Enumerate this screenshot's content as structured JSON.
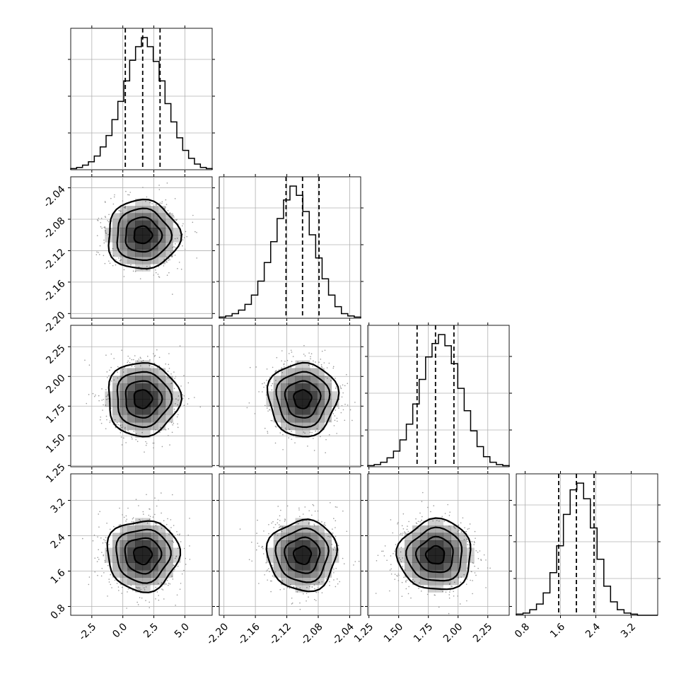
{
  "chart_data": {
    "type": "corner",
    "parameters": [
      {
        "range": [
          -4.2,
          7.2
        ],
        "ticks": [
          "-2.5",
          "0.0",
          "2.5",
          "5.0"
        ],
        "tick_values": [
          -2.5,
          0,
          2.5,
          5
        ],
        "mean": 1.6,
        "sd": 1.45,
        "quantiles": [
          0.2,
          1.6,
          3.0
        ]
      },
      {
        "range": [
          -2.206,
          -2.026
        ],
        "ticks": [
          "-2.20",
          "-2.16",
          "-2.12",
          "-2.08",
          "-2.04"
        ],
        "tick_values": [
          -2.2,
          -2.16,
          -2.12,
          -2.08,
          -2.04
        ],
        "mean": -2.1,
        "sd": 0.022,
        "quantiles": [
          -2.121,
          -2.1,
          -2.079
        ]
      },
      {
        "range": [
          1.24,
          2.43
        ],
        "ticks": [
          "1.25",
          "1.50",
          "1.75",
          "2.00",
          "2.25"
        ],
        "tick_values": [
          1.25,
          1.5,
          1.75,
          2.0,
          2.25
        ],
        "mean": 1.81,
        "sd": 0.155,
        "quantiles": [
          1.655,
          1.81,
          1.965
        ]
      },
      {
        "range": [
          0.6,
          3.8
        ],
        "ticks": [
          "0.8",
          "1.6",
          "2.4",
          "3.2"
        ],
        "tick_values": [
          0.8,
          1.6,
          2.4,
          3.2
        ],
        "mean": 1.96,
        "sd": 0.4,
        "quantiles": [
          1.56,
          1.96,
          2.36
        ]
      }
    ],
    "histograms": [
      {
        "param": 0,
        "edges_range": [
          -4.2,
          7.2
        ],
        "counts": [
          1,
          2,
          4,
          7,
          12,
          20,
          30,
          44,
          60,
          78,
          96,
          108,
          116,
          108,
          95,
          78,
          58,
          42,
          28,
          17,
          10,
          5,
          2,
          1
        ]
      },
      {
        "param": 1,
        "edges_range": [
          -2.206,
          -2.026
        ],
        "counts": [
          1,
          2,
          4,
          7,
          12,
          20,
          32,
          48,
          66,
          86,
          102,
          114,
          106,
          92,
          72,
          52,
          34,
          20,
          10,
          4,
          2,
          1
        ]
      },
      {
        "param": 2,
        "edges_range": [
          1.24,
          2.43
        ],
        "counts": [
          1,
          2,
          4,
          8,
          14,
          24,
          38,
          56,
          78,
          98,
          110,
          118,
          108,
          92,
          70,
          50,
          32,
          18,
          9,
          4,
          2,
          1
        ]
      },
      {
        "param": 3,
        "edges_range": [
          0.6,
          3.8
        ],
        "counts": [
          1,
          2,
          5,
          10,
          20,
          38,
          62,
          90,
          112,
          118,
          104,
          78,
          50,
          26,
          12,
          5,
          2,
          1,
          0,
          0,
          0
        ]
      }
    ],
    "panels": [
      {
        "row": 1,
        "col": 0,
        "x_center": 1.6,
        "y_center": -2.1
      },
      {
        "row": 2,
        "col": 0,
        "x_center": 1.6,
        "y_center": 1.81
      },
      {
        "row": 2,
        "col": 1,
        "x_center": -2.1,
        "y_center": 1.81
      },
      {
        "row": 3,
        "col": 0,
        "x_center": 1.6,
        "y_center": 1.96
      },
      {
        "row": 3,
        "col": 1,
        "x_center": -2.1,
        "y_center": 1.96
      },
      {
        "row": 3,
        "col": 2,
        "x_center": 1.81,
        "y_center": 1.96
      }
    ],
    "contour_levels_sigma": [
      0.5,
      1.0,
      1.5,
      2.0
    ],
    "quantiles": [
      0.16,
      0.5,
      0.84
    ],
    "grid": true,
    "colors": {
      "line": "#000000",
      "scatter": "#9a9a9a",
      "grid": "#b0b0b0",
      "density": "#000000"
    }
  }
}
